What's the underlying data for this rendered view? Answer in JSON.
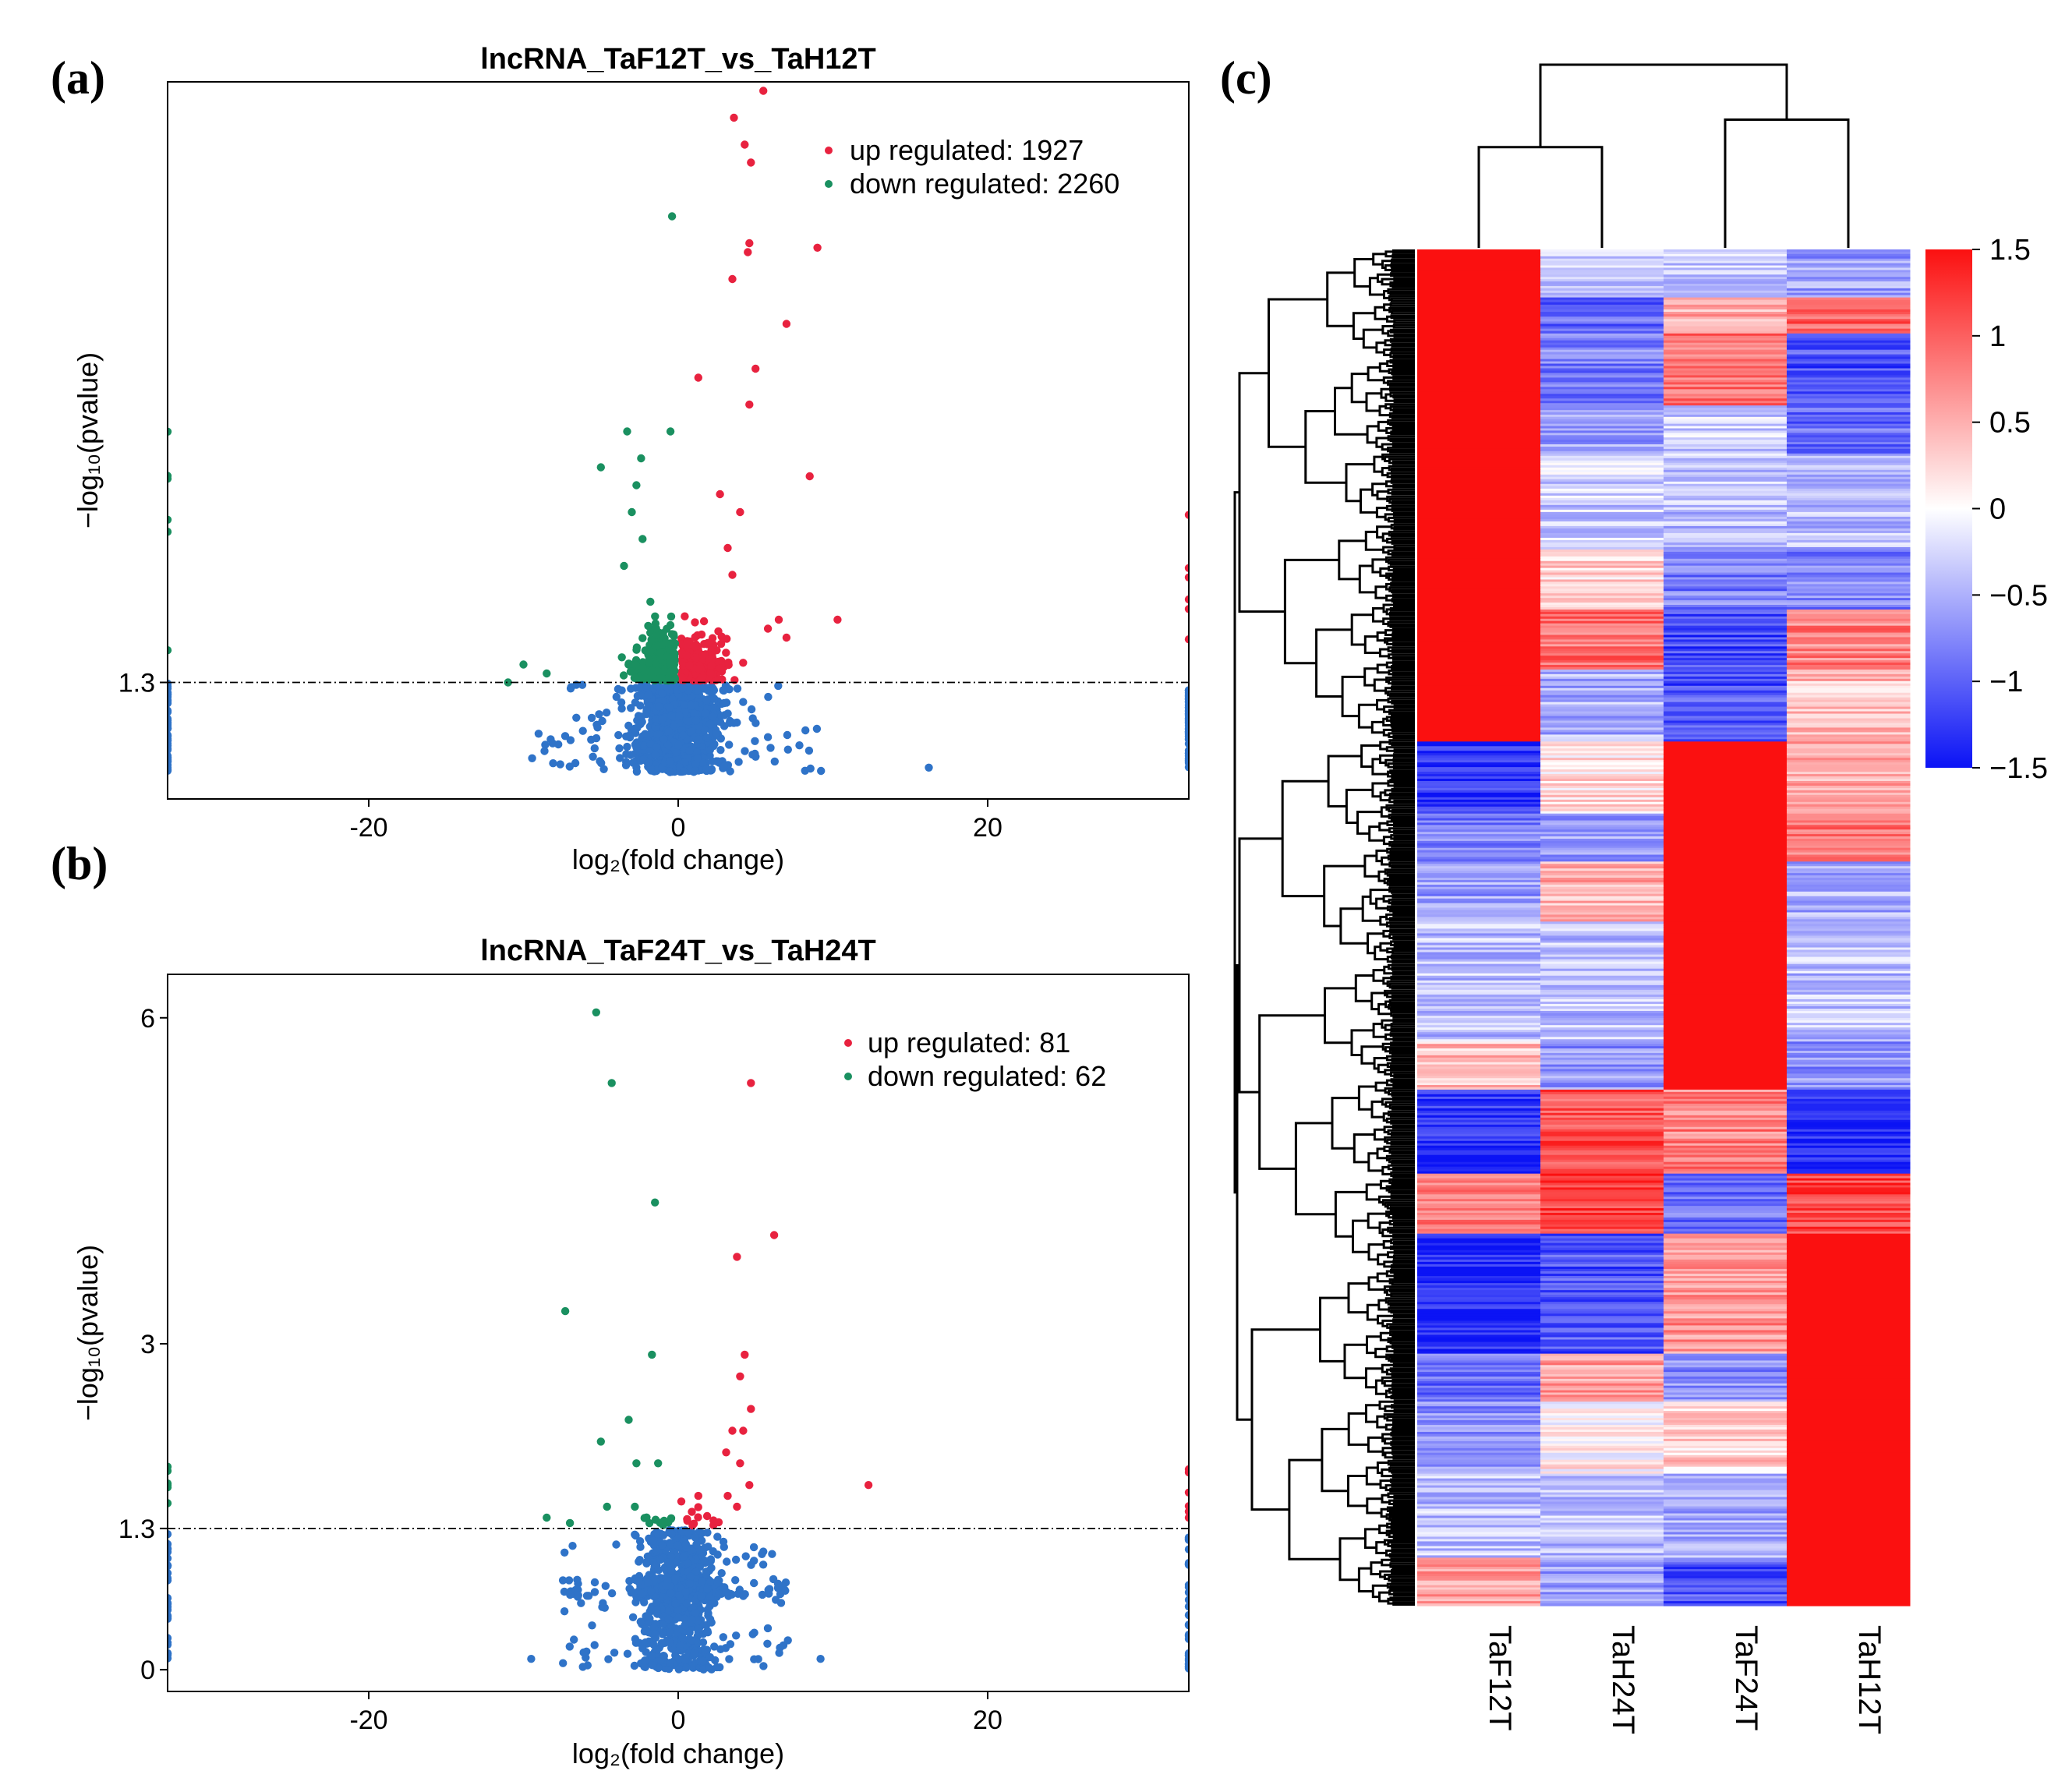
{
  "panels": {
    "a": "(a)",
    "b": "(b)",
    "c": "(c)"
  },
  "chart_data": [
    {
      "id": "a",
      "type": "scatter",
      "title": "lncRNA_TaF12T_vs_TaH12T",
      "xlabel": "log₂(fold change)",
      "ylabel": "−log₁₀(pvalue)",
      "xlim": [
        -33,
        33
      ],
      "ylim": [
        0,
        8
      ],
      "xticks": [
        -20,
        0,
        20
      ],
      "xtick_labels": [
        "-20",
        "0",
        "20"
      ],
      "yticks": [
        1.3
      ],
      "ytick_labels": [
        "1.3"
      ],
      "threshold": 1.3,
      "legend": [
        {
          "name": "up regulated",
          "count": 1927,
          "label": "up regulated: 1927",
          "color": "#e8223f"
        },
        {
          "name": "down regulated",
          "count": 2260,
          "label": "down regulated: 2260",
          "color": "#1a9060"
        }
      ],
      "not_significant_color": "#2f73c8",
      "up_points": [
        [
          5.5,
          7.9
        ],
        [
          3.6,
          7.6
        ],
        [
          4.3,
          7.3
        ],
        [
          4.7,
          7.1
        ],
        [
          4.6,
          6.2
        ],
        [
          4.5,
          6.1
        ],
        [
          9.0,
          6.15
        ],
        [
          3.5,
          5.8
        ],
        [
          7.0,
          5.3
        ],
        [
          1.3,
          4.7
        ],
        [
          5.0,
          4.8
        ],
        [
          4.6,
          4.4
        ],
        [
          8.5,
          3.6
        ],
        [
          10.3,
          2.0
        ],
        [
          2.7,
          3.4
        ],
        [
          4.0,
          3.2
        ],
        [
          3.2,
          2.8
        ],
        [
          3.5,
          2.5
        ],
        [
          6.5,
          2.0
        ],
        [
          5.8,
          1.9
        ],
        [
          7.0,
          1.8
        ]
      ],
      "down_points": [
        [
          -0.4,
          6.5
        ],
        [
          -3.3,
          4.1
        ],
        [
          -0.5,
          4.1
        ],
        [
          -5.0,
          3.7
        ],
        [
          -2.4,
          3.8
        ],
        [
          -2.7,
          3.5
        ],
        [
          -3.0,
          3.2
        ],
        [
          -2.3,
          2.9
        ],
        [
          -3.5,
          2.6
        ],
        [
          -1.8,
          2.2
        ],
        [
          -10.0,
          1.5
        ],
        [
          -11.0,
          1.3
        ],
        [
          -8.5,
          1.4
        ]
      ],
      "ns_extra": [
        [
          16.2,
          0.35
        ]
      ]
    },
    {
      "id": "b",
      "type": "scatter",
      "title": "lncRNA_TaF24T_vs_TaH24T",
      "xlabel": "log₂(fold change)",
      "ylabel": "−log₁₀(pvalue)",
      "xlim": [
        -33,
        33
      ],
      "ylim": [
        -0.2,
        6.4
      ],
      "xticks": [
        -20,
        0,
        20
      ],
      "xtick_labels": [
        "-20",
        "0",
        "20"
      ],
      "yticks": [
        0,
        1.3,
        3,
        6
      ],
      "ytick_labels": [
        "0",
        "1.3",
        "3",
        "6"
      ],
      "threshold": 1.3,
      "legend": [
        {
          "name": "up regulated",
          "count": 81,
          "label": "up regulated: 81",
          "color": "#e8223f"
        },
        {
          "name": "down regulated",
          "count": 62,
          "label": "down regulated: 62",
          "color": "#1a9060"
        }
      ],
      "not_significant_color": "#2f73c8",
      "up_points": [
        [
          4.7,
          5.4
        ],
        [
          6.2,
          4.0
        ],
        [
          3.8,
          3.8
        ],
        [
          4.3,
          2.9
        ],
        [
          4.0,
          2.7
        ],
        [
          4.7,
          2.4
        ],
        [
          3.5,
          2.2
        ],
        [
          4.2,
          2.2
        ],
        [
          3.1,
          2.0
        ],
        [
          4.0,
          1.9
        ],
        [
          12.3,
          1.7
        ],
        [
          1.3,
          1.6
        ],
        [
          3.2,
          1.6
        ],
        [
          3.8,
          1.5
        ],
        [
          4.6,
          1.7
        ]
      ],
      "down_points": [
        [
          -5.3,
          6.05
        ],
        [
          -4.3,
          5.4
        ],
        [
          -1.5,
          4.3
        ],
        [
          -7.3,
          3.3
        ],
        [
          -1.7,
          2.9
        ],
        [
          -5.0,
          2.1
        ],
        [
          -3.2,
          2.3
        ],
        [
          -2.7,
          1.9
        ],
        [
          -1.3,
          1.9
        ],
        [
          -8.5,
          1.4
        ],
        [
          -7.0,
          1.35
        ],
        [
          -2.8,
          1.5
        ],
        [
          -4.6,
          1.5
        ]
      ],
      "ns_extra": [
        [
          -9.5,
          0.1
        ],
        [
          9.2,
          0.1
        ]
      ]
    },
    {
      "id": "c",
      "type": "heatmap",
      "columns": [
        "TaF12T",
        "TaH24T",
        "TaF24T",
        "TaH12T"
      ],
      "value_range": [
        -1.5,
        1.5
      ],
      "colorbar_ticks": [
        1.5,
        1,
        0.5,
        0,
        -0.5,
        -1,
        -1.5
      ],
      "colorbar_tick_labels": [
        "1.5",
        "1",
        "0.5",
        "0",
        "−0.5",
        "−1",
        "−1.5"
      ],
      "colors": {
        "low": "#0b13f5",
        "mid": "#ffffff",
        "high": "#fb1010"
      },
      "row_blocks": [
        {
          "height": 4,
          "values": [
            1.5,
            -0.4,
            -0.3,
            -0.6
          ]
        },
        {
          "height": 3,
          "values": [
            1.5,
            -1.0,
            0.5,
            1.0
          ]
        },
        {
          "height": 6,
          "values": [
            1.5,
            -0.8,
            0.9,
            -1.1
          ]
        },
        {
          "height": 4,
          "values": [
            1.5,
            -0.6,
            -0.3,
            -0.9
          ]
        },
        {
          "height": 8,
          "values": [
            1.5,
            -0.3,
            -0.4,
            -0.4
          ]
        },
        {
          "height": 5,
          "values": [
            1.5,
            0.3,
            -0.8,
            -0.8
          ]
        },
        {
          "height": 5,
          "values": [
            1.5,
            0.9,
            -1.2,
            0.8
          ]
        },
        {
          "height": 6,
          "values": [
            1.5,
            -0.5,
            -1.1,
            0.4
          ]
        },
        {
          "height": 6,
          "values": [
            -1.3,
            0.2,
            1.5,
            0.5
          ]
        },
        {
          "height": 4,
          "values": [
            -0.8,
            -0.6,
            1.5,
            0.9
          ]
        },
        {
          "height": 5,
          "values": [
            -0.6,
            0.5,
            1.5,
            -0.5
          ]
        },
        {
          "height": 10,
          "values": [
            -0.4,
            -0.4,
            1.5,
            -0.4
          ]
        },
        {
          "height": 4,
          "values": [
            0.4,
            -0.7,
            1.5,
            -0.7
          ]
        },
        {
          "height": 7,
          "values": [
            -1.3,
            1.1,
            0.8,
            -1.4
          ]
        },
        {
          "height": 5,
          "values": [
            0.8,
            1.2,
            -0.9,
            1.2
          ]
        },
        {
          "height": 10,
          "values": [
            -1.4,
            -1.1,
            0.7,
            1.5
          ]
        },
        {
          "height": 4,
          "values": [
            -0.9,
            0.6,
            -0.7,
            1.5
          ]
        },
        {
          "height": 6,
          "values": [
            -0.7,
            0.1,
            0.3,
            1.5
          ]
        },
        {
          "height": 7,
          "values": [
            -0.4,
            -0.4,
            -0.5,
            1.5
          ]
        },
        {
          "height": 4,
          "values": [
            0.6,
            -0.6,
            -1.1,
            1.5
          ]
        }
      ],
      "column_dendrogram": {
        "merges": [
          {
            "left": 0,
            "right": 1,
            "height": 0.55
          },
          {
            "left": 2,
            "right": 3,
            "height": 0.7
          },
          {
            "left": 4,
            "right": 5,
            "height": 1.0
          }
        ]
      }
    }
  ]
}
